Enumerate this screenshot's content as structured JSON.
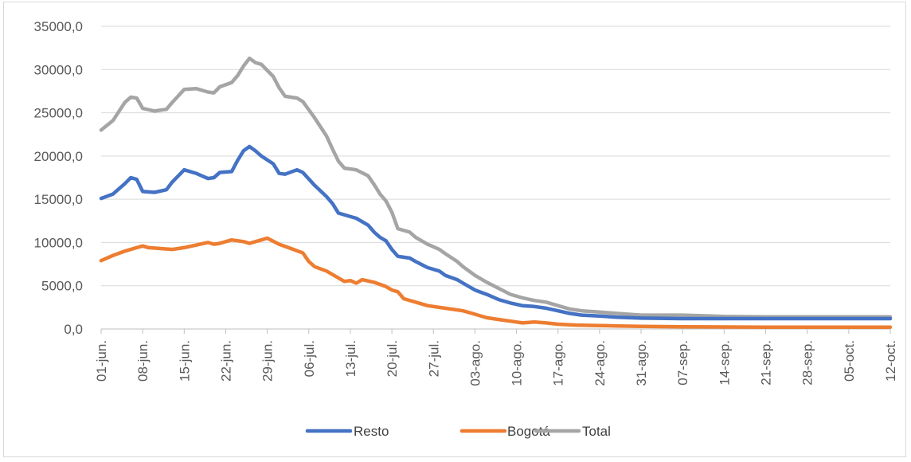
{
  "chart_data": {
    "type": "line",
    "title": "",
    "xlabel": "",
    "ylabel": "",
    "ylim": [
      0,
      35000
    ],
    "y_ticks": [
      "0,0",
      "5000,0",
      "10000,0",
      "15000,0",
      "20000,0",
      "25000,0",
      "30000,0",
      "35000,0"
    ],
    "x_ticks": [
      "01-jun.",
      "08-jun.",
      "15-jun.",
      "22-jun.",
      "29-jun.",
      "06-jul.",
      "13-jul.",
      "20-jul.",
      "27-jul.",
      "03-ago.",
      "10-ago.",
      "17-ago.",
      "24-ago.",
      "31-ago.",
      "07-sep.",
      "14-sep.",
      "21-sep.",
      "28-sep.",
      "05-oct.",
      "12-oct."
    ],
    "x_tick_days": [
      0,
      7,
      14,
      21,
      28,
      35,
      42,
      49,
      56,
      63,
      70,
      77,
      84,
      91,
      98,
      105,
      112,
      119,
      126,
      133
    ],
    "grid": "horizontal",
    "legend_position": "bottom",
    "series": [
      {
        "name": "Resto",
        "color": "#4472c4",
        "points": [
          [
            0,
            15100
          ],
          [
            2,
            15600
          ],
          [
            4,
            16800
          ],
          [
            5,
            17500
          ],
          [
            6,
            17300
          ],
          [
            7,
            15900
          ],
          [
            9,
            15800
          ],
          [
            11,
            16100
          ],
          [
            12,
            17000
          ],
          [
            14,
            18400
          ],
          [
            16,
            18000
          ],
          [
            18,
            17400
          ],
          [
            19,
            17500
          ],
          [
            20,
            18100
          ],
          [
            22,
            18200
          ],
          [
            23,
            19500
          ],
          [
            24,
            20600
          ],
          [
            25,
            21100
          ],
          [
            26,
            20600
          ],
          [
            27,
            20000
          ],
          [
            29,
            19100
          ],
          [
            30,
            18000
          ],
          [
            31,
            17900
          ],
          [
            33,
            18400
          ],
          [
            34,
            18100
          ],
          [
            36,
            16600
          ],
          [
            38,
            15300
          ],
          [
            39,
            14500
          ],
          [
            40,
            13400
          ],
          [
            42,
            13000
          ],
          [
            43,
            12800
          ],
          [
            45,
            12000
          ],
          [
            46,
            11200
          ],
          [
            47,
            10600
          ],
          [
            48,
            10200
          ],
          [
            49,
            9200
          ],
          [
            50,
            8400
          ],
          [
            52,
            8200
          ],
          [
            53,
            7800
          ],
          [
            55,
            7100
          ],
          [
            57,
            6700
          ],
          [
            58,
            6200
          ],
          [
            60,
            5700
          ],
          [
            61,
            5300
          ],
          [
            63,
            4500
          ],
          [
            65,
            4000
          ],
          [
            67,
            3400
          ],
          [
            69,
            3000
          ],
          [
            71,
            2700
          ],
          [
            73,
            2600
          ],
          [
            75,
            2400
          ],
          [
            77,
            2100
          ],
          [
            79,
            1800
          ],
          [
            81,
            1600
          ],
          [
            84,
            1500
          ],
          [
            87,
            1350
          ],
          [
            91,
            1250
          ],
          [
            98,
            1200
          ],
          [
            105,
            1200
          ],
          [
            112,
            1200
          ],
          [
            119,
            1200
          ],
          [
            126,
            1200
          ],
          [
            133,
            1200
          ]
        ]
      },
      {
        "name": "Bogotá",
        "color": "#ed7d31",
        "points": [
          [
            0,
            7900
          ],
          [
            2,
            8500
          ],
          [
            4,
            9000
          ],
          [
            6,
            9400
          ],
          [
            7,
            9600
          ],
          [
            8,
            9400
          ],
          [
            10,
            9300
          ],
          [
            12,
            9200
          ],
          [
            14,
            9400
          ],
          [
            16,
            9700
          ],
          [
            18,
            10000
          ],
          [
            19,
            9800
          ],
          [
            20,
            9900
          ],
          [
            22,
            10300
          ],
          [
            24,
            10100
          ],
          [
            25,
            9900
          ],
          [
            27,
            10300
          ],
          [
            28,
            10500
          ],
          [
            30,
            9800
          ],
          [
            32,
            9300
          ],
          [
            34,
            8800
          ],
          [
            35,
            7800
          ],
          [
            36,
            7200
          ],
          [
            38,
            6700
          ],
          [
            40,
            5900
          ],
          [
            41,
            5500
          ],
          [
            42,
            5600
          ],
          [
            43,
            5300
          ],
          [
            44,
            5700
          ],
          [
            46,
            5400
          ],
          [
            48,
            4900
          ],
          [
            49,
            4500
          ],
          [
            50,
            4300
          ],
          [
            51,
            3500
          ],
          [
            53,
            3100
          ],
          [
            55,
            2700
          ],
          [
            57,
            2500
          ],
          [
            59,
            2300
          ],
          [
            61,
            2100
          ],
          [
            63,
            1700
          ],
          [
            65,
            1300
          ],
          [
            67,
            1100
          ],
          [
            69,
            900
          ],
          [
            71,
            700
          ],
          [
            73,
            800
          ],
          [
            75,
            700
          ],
          [
            77,
            550
          ],
          [
            80,
            450
          ],
          [
            84,
            400
          ],
          [
            87,
            350
          ],
          [
            91,
            300
          ],
          [
            98,
            250
          ],
          [
            105,
            230
          ],
          [
            112,
            200
          ],
          [
            119,
            200
          ],
          [
            126,
            200
          ],
          [
            133,
            200
          ]
        ]
      },
      {
        "name": "Total",
        "color": "#a5a5a5",
        "points": [
          [
            0,
            23000
          ],
          [
            2,
            24100
          ],
          [
            4,
            26200
          ],
          [
            5,
            26800
          ],
          [
            6,
            26700
          ],
          [
            7,
            25500
          ],
          [
            9,
            25200
          ],
          [
            11,
            25400
          ],
          [
            12,
            26200
          ],
          [
            14,
            27700
          ],
          [
            16,
            27800
          ],
          [
            18,
            27400
          ],
          [
            19,
            27300
          ],
          [
            20,
            28000
          ],
          [
            22,
            28500
          ],
          [
            23,
            29300
          ],
          [
            24,
            30400
          ],
          [
            25,
            31300
          ],
          [
            26,
            30800
          ],
          [
            27,
            30600
          ],
          [
            29,
            29200
          ],
          [
            30,
            27900
          ],
          [
            31,
            26900
          ],
          [
            33,
            26700
          ],
          [
            34,
            26300
          ],
          [
            36,
            24400
          ],
          [
            38,
            22300
          ],
          [
            39,
            20800
          ],
          [
            40,
            19400
          ],
          [
            41,
            18600
          ],
          [
            42,
            18500
          ],
          [
            43,
            18400
          ],
          [
            45,
            17700
          ],
          [
            46,
            16700
          ],
          [
            47,
            15600
          ],
          [
            48,
            14800
          ],
          [
            49,
            13500
          ],
          [
            50,
            11600
          ],
          [
            52,
            11200
          ],
          [
            53,
            10600
          ],
          [
            55,
            9800
          ],
          [
            57,
            9200
          ],
          [
            58,
            8700
          ],
          [
            60,
            7800
          ],
          [
            61,
            7200
          ],
          [
            63,
            6200
          ],
          [
            65,
            5400
          ],
          [
            67,
            4700
          ],
          [
            69,
            4000
          ],
          [
            71,
            3600
          ],
          [
            73,
            3300
          ],
          [
            75,
            3100
          ],
          [
            77,
            2700
          ],
          [
            79,
            2300
          ],
          [
            81,
            2100
          ],
          [
            84,
            1950
          ],
          [
            87,
            1800
          ],
          [
            91,
            1600
          ],
          [
            98,
            1600
          ],
          [
            103,
            1500
          ],
          [
            105,
            1450
          ],
          [
            112,
            1400
          ],
          [
            119,
            1400
          ],
          [
            126,
            1400
          ],
          [
            133,
            1400
          ]
        ]
      }
    ]
  }
}
